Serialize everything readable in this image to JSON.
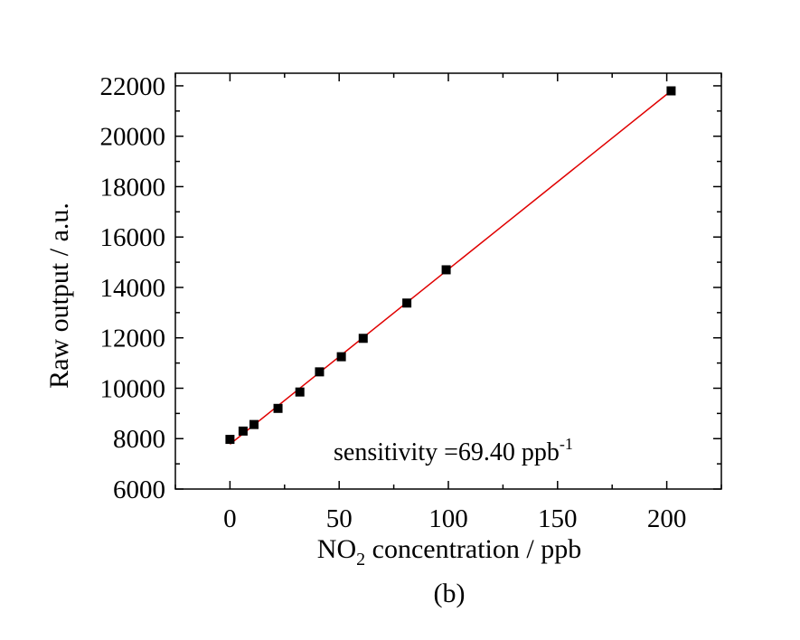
{
  "chart_data": {
    "type": "scatter",
    "xlabel_main": "NO",
    "xlabel_sub": "2",
    "xlabel_rest": " concentration / ppb",
    "ylabel": "Raw output / a.u.",
    "panel_label": "(b)",
    "annotation_main": "sensitivity =69.40 ppb",
    "annotation_sup": "-1",
    "xlim": [
      -25,
      225
    ],
    "ylim": [
      6000,
      22500
    ],
    "xticks": [
      0,
      50,
      100,
      150,
      200
    ],
    "yticks": [
      6000,
      8000,
      10000,
      12000,
      14000,
      16000,
      18000,
      20000,
      22000
    ],
    "grid": false,
    "marker_color": "#000000",
    "fit_color": "#e00000",
    "series": [
      {
        "marker": "square",
        "x": [
          0,
          6,
          11,
          22,
          32,
          41,
          51,
          61,
          81,
          99,
          202
        ],
        "y": [
          7970,
          8300,
          8560,
          9200,
          9850,
          10650,
          11250,
          11980,
          13380,
          14700,
          21800
        ]
      }
    ],
    "fit": {
      "x": [
        0,
        202
      ],
      "y": [
        7780,
        21800
      ]
    }
  }
}
